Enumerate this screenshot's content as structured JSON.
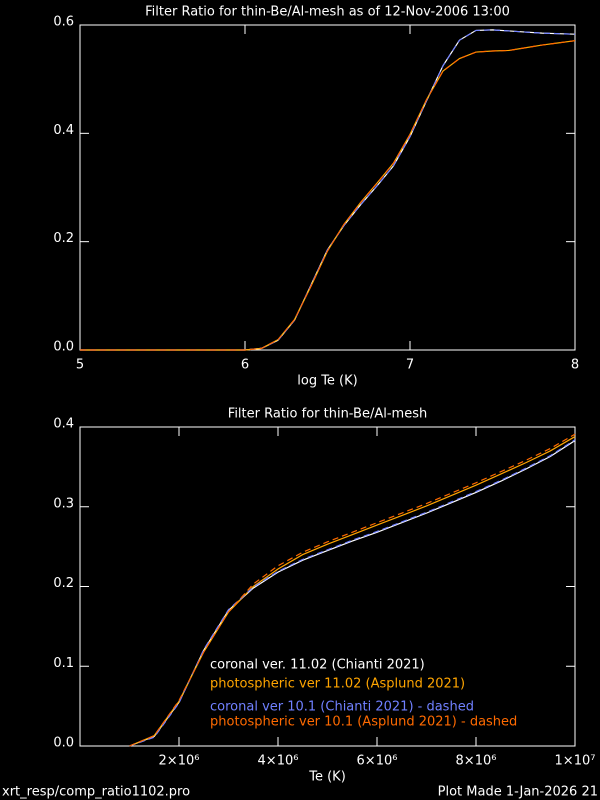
{
  "chart_data": [
    {
      "type": "line",
      "title": "Filter Ratio for thin-Be/Al-mesh as of 12-Nov-2006 13:00",
      "x_label": "log Te (K)",
      "x": [
        5.0,
        5.1,
        5.2,
        5.3,
        5.4,
        5.5,
        5.6,
        5.7,
        5.8,
        5.9,
        6.0,
        6.1,
        6.2,
        6.3,
        6.4,
        6.5,
        6.6,
        6.7,
        6.8,
        6.9,
        7.0,
        7.1,
        7.2,
        7.3,
        7.4,
        7.5,
        7.6,
        7.7,
        7.8,
        7.9,
        8.0
      ],
      "xlim": [
        5,
        8
      ],
      "xticks": [
        5,
        6,
        7,
        8
      ],
      "ylim": [
        0,
        0.6
      ],
      "yticks": [
        {
          "value": 0,
          "label": "0.0"
        },
        0.2,
        0.4,
        0.6
      ],
      "series": [
        {
          "color": "#ffffff",
          "dashed": false,
          "values": [
            0,
            0,
            0,
            0,
            0,
            0,
            0,
            0,
            0,
            0,
            0,
            0.003,
            0.018,
            0.055,
            0.12,
            0.185,
            0.23,
            0.268,
            0.303,
            0.34,
            0.394,
            0.46,
            0.525,
            0.572,
            0.59,
            0.591,
            0.589,
            0.587,
            0.585,
            0.584,
            0.583
          ]
        },
        {
          "color": "#ffa500",
          "dashed": false,
          "values": [
            0,
            0,
            0,
            0,
            0,
            0,
            0,
            0,
            0,
            0,
            0,
            0.003,
            0.019,
            0.056,
            0.118,
            0.183,
            0.232,
            0.272,
            0.308,
            0.345,
            0.398,
            0.462,
            0.515,
            0.538,
            0.55,
            0.552,
            0.553,
            0.558,
            0.563,
            0.567,
            0.571
          ]
        },
        {
          "color": "#7080ff",
          "dashed": true,
          "values": [
            0,
            0,
            0,
            0,
            0,
            0,
            0,
            0,
            0,
            0,
            0,
            0.003,
            0.018,
            0.055,
            0.12,
            0.185,
            0.23,
            0.268,
            0.303,
            0.34,
            0.394,
            0.46,
            0.525,
            0.572,
            0.59,
            0.591,
            0.589,
            0.587,
            0.585,
            0.584,
            0.583
          ]
        },
        {
          "color": "#ff6a00",
          "dashed": true,
          "values": [
            0,
            0,
            0,
            0,
            0,
            0,
            0,
            0,
            0,
            0,
            0,
            0.003,
            0.019,
            0.056,
            0.118,
            0.183,
            0.232,
            0.272,
            0.308,
            0.345,
            0.398,
            0.462,
            0.515,
            0.538,
            0.55,
            0.552,
            0.553,
            0.558,
            0.563,
            0.567,
            0.571
          ]
        }
      ]
    },
    {
      "type": "line",
      "title": "Filter Ratio for thin-Be/Al-mesh",
      "x_label": "Te (K)",
      "x": [
        1000000,
        1500000,
        2000000,
        2500000,
        3000000,
        3500000,
        4000000,
        4500000,
        5000000,
        5500000,
        6000000,
        6500000,
        7000000,
        7500000,
        8000000,
        8500000,
        9000000,
        9500000,
        10000000
      ],
      "xlim": [
        0,
        10000000
      ],
      "xticks": [
        {
          "value": 2000000,
          "label": "2×10⁶"
        },
        {
          "value": 4000000,
          "label": "4×10⁶"
        },
        {
          "value": 6000000,
          "label": "6×10⁶"
        },
        {
          "value": 8000000,
          "label": "8×10⁶"
        },
        {
          "value": 10000000,
          "label": "1×10⁷"
        }
      ],
      "ylim": [
        0,
        0.4
      ],
      "yticks": [
        {
          "value": 0,
          "label": "0.0"
        },
        0.1,
        0.2,
        0.3,
        0.4
      ],
      "legend": "lower right",
      "series": [
        {
          "name": "coronal ver. 11.02 (Chianti 2021)",
          "color": "#ffffff",
          "dashed": false,
          "values": [
            0,
            0.012,
            0.055,
            0.12,
            0.17,
            0.198,
            0.218,
            0.233,
            0.245,
            0.257,
            0.268,
            0.28,
            0.292,
            0.305,
            0.318,
            0.332,
            0.347,
            0.363,
            0.383
          ]
        },
        {
          "name": "photospheric ver 11.02 (Asplund 2021)",
          "color": "#ffa500",
          "dashed": false,
          "values": [
            0,
            0.013,
            0.056,
            0.118,
            0.168,
            0.2,
            0.222,
            0.24,
            0.253,
            0.265,
            0.277,
            0.289,
            0.301,
            0.314,
            0.327,
            0.341,
            0.355,
            0.37,
            0.388
          ]
        },
        {
          "name": "coronal ver 10.1 (Chianti 2021) - dashed",
          "color": "#7080ff",
          "dashed": true,
          "values": [
            0,
            0.011,
            0.054,
            0.121,
            0.171,
            0.199,
            0.219,
            0.234,
            0.246,
            0.258,
            0.269,
            0.281,
            0.293,
            0.306,
            0.319,
            0.333,
            0.348,
            0.364,
            0.384
          ]
        },
        {
          "name": "photospheric ver 10.1 (Asplund 2021) - dashed",
          "color": "#ff6a00",
          "dashed": true,
          "values": [
            0,
            0.013,
            0.057,
            0.118,
            0.168,
            0.203,
            0.226,
            0.243,
            0.256,
            0.268,
            0.28,
            0.292,
            0.304,
            0.317,
            0.33,
            0.344,
            0.358,
            0.373,
            0.391
          ]
        }
      ]
    }
  ],
  "footer": {
    "left": "xrt_resp/comp_ratio1102.pro",
    "right": "Plot Made  1-Jan-2026 21"
  }
}
